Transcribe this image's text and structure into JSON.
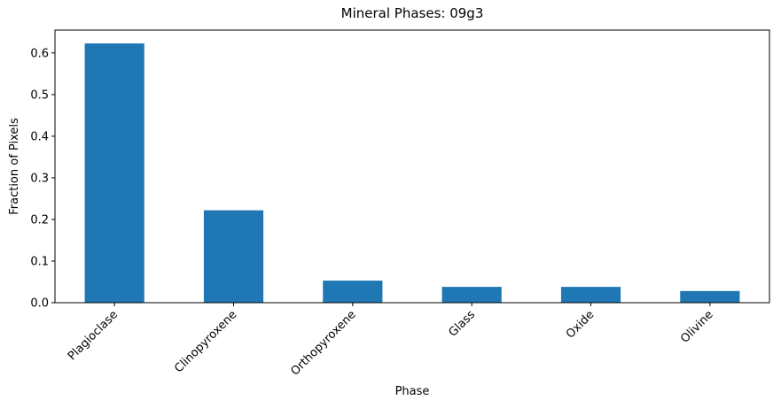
{
  "chart_data": {
    "type": "bar",
    "title": "Mineral Phases: 09g3",
    "xlabel": "Phase",
    "ylabel": "Fraction of Pixels",
    "categories": [
      "Plagioclase",
      "Clinopyroxene",
      "Orthopyroxene",
      "Glass",
      "Oxide",
      "Olivine"
    ],
    "values": [
      0.623,
      0.222,
      0.053,
      0.038,
      0.038,
      0.028
    ],
    "ylim": [
      0,
      0.655
    ],
    "yticks": [
      0.0,
      0.1,
      0.2,
      0.3,
      0.4,
      0.5,
      0.6
    ],
    "ytick_labels": [
      "0.0",
      "0.1",
      "0.2",
      "0.3",
      "0.4",
      "0.5",
      "0.6"
    ],
    "bar_color": "#1f77b4",
    "grid": false,
    "legend": "none"
  }
}
